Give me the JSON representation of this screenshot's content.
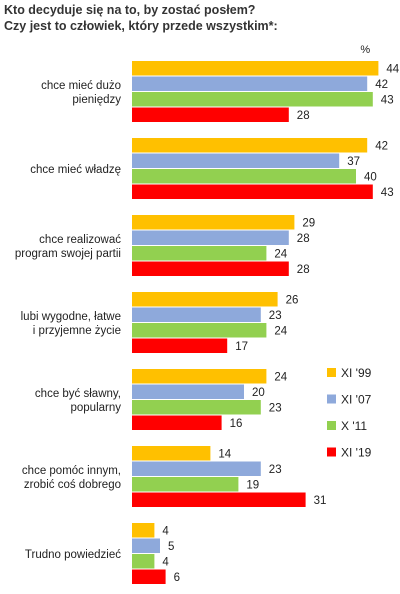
{
  "title_line1": "Kto decyduje się na to, by zostać posłem?",
  "title_line2": "Czy jest to człowiek, który przede wszystkim*:",
  "chart_data": {
    "type": "bar",
    "orientation": "horizontal",
    "unit_label": "%",
    "categories": [
      [
        "chce mieć dużo",
        "pieniędzy"
      ],
      [
        "chce mieć władzę"
      ],
      [
        "chce realizować",
        "program swojej partii"
      ],
      [
        "lubi wygodne, łatwe",
        "i przyjemne życie"
      ],
      [
        "chce być sławny,",
        "popularny"
      ],
      [
        "chce pomóc innym,",
        "zrobić coś dobrego"
      ],
      [
        "Trudno powiedzieć"
      ]
    ],
    "series": [
      {
        "name": "XI '99",
        "color": "#FFC000",
        "values": [
          44,
          42,
          29,
          26,
          24,
          14,
          4
        ]
      },
      {
        "name": "XI '07",
        "color": "#8EA9DB",
        "values": [
          42,
          37,
          28,
          23,
          20,
          23,
          5
        ]
      },
      {
        "name": "X '11",
        "color": "#92D050",
        "values": [
          43,
          40,
          24,
          24,
          23,
          19,
          4
        ]
      },
      {
        "name": "XI '19",
        "color": "#FF0000",
        "values": [
          28,
          43,
          28,
          17,
          16,
          31,
          6
        ]
      }
    ],
    "legend_position": "right",
    "grid": false
  }
}
